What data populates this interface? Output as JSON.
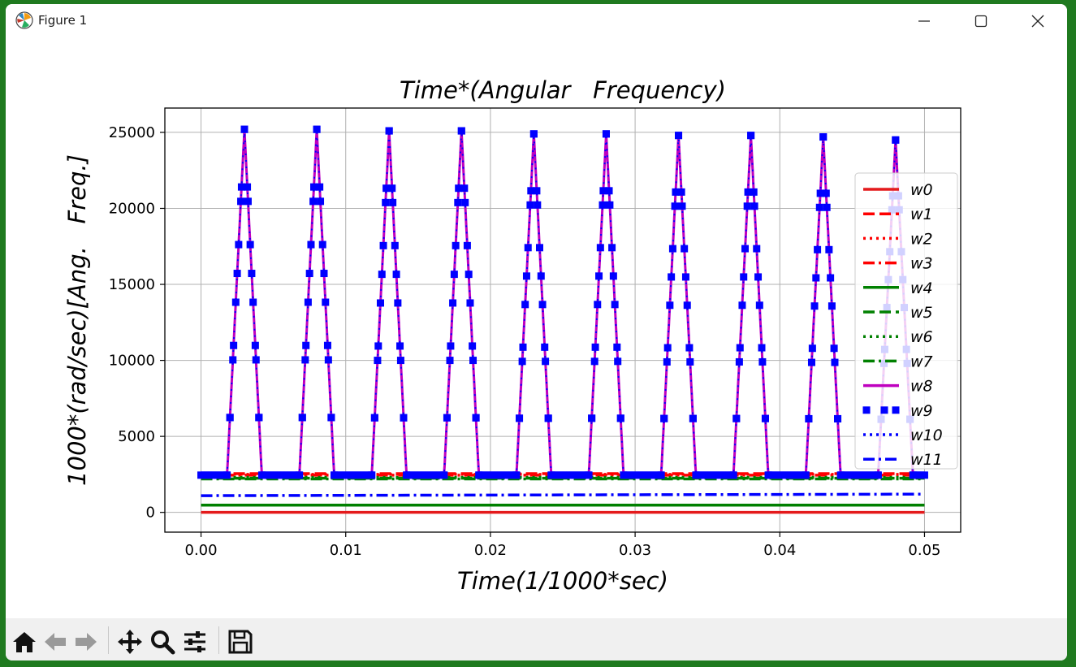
{
  "window": {
    "title": "Figure 1"
  },
  "chart_data": {
    "type": "line",
    "title": "Time*(Angular   Frequency)",
    "xlabel": "Time(1/1000*sec)",
    "ylabel": "1000*(rad/sec)[Ang.   Freq.]",
    "xlim": [
      -0.0025,
      0.0525
    ],
    "ylim": [
      -1300,
      26600
    ],
    "x_ticks": [
      "0.00",
      "0.01",
      "0.02",
      "0.03",
      "0.04",
      "0.05"
    ],
    "x_tick_values": [
      0,
      0.01,
      0.02,
      0.03,
      0.04,
      0.05
    ],
    "y_ticks": [
      "0",
      "5000",
      "10000",
      "15000",
      "20000",
      "25000"
    ],
    "y_tick_values": [
      0,
      5000,
      10000,
      15000,
      20000,
      25000
    ],
    "grid": true,
    "legend_position": "right",
    "peaks": {
      "centers": [
        0.003,
        0.008,
        0.013,
        0.018,
        0.023,
        0.028,
        0.033,
        0.038,
        0.043,
        0.048
      ],
      "heights": [
        25200,
        25200,
        25100,
        25100,
        24900,
        24900,
        24800,
        24800,
        24700,
        24500
      ],
      "half_width": 0.0012,
      "baseline": 2450
    },
    "series": [
      {
        "name": "w0",
        "color": "#e41a1c",
        "style": "solid",
        "values_start_end": [
          0,
          0
        ]
      },
      {
        "name": "w1",
        "color": "#ff0000",
        "style": "dashed",
        "values_start_end": [
          2550,
          2550
        ]
      },
      {
        "name": "w2",
        "color": "#ff0000",
        "style": "dotted",
        "values_start_end": [
          2500,
          2500
        ]
      },
      {
        "name": "w3",
        "color": "#ff0000",
        "style": "dashdot",
        "values_start_end": [
          2450,
          2450
        ]
      },
      {
        "name": "w4",
        "color": "#008000",
        "style": "solid",
        "values_start_end": [
          480,
          480
        ]
      },
      {
        "name": "w5",
        "color": "#008000",
        "style": "dashed",
        "values_start_end": [
          2250,
          2250
        ]
      },
      {
        "name": "w6",
        "color": "#008000",
        "style": "dotted",
        "values_start_end": [
          2300,
          2300
        ]
      },
      {
        "name": "w7",
        "color": "#008000",
        "style": "dashdot",
        "values_start_end": [
          2200,
          2200
        ]
      },
      {
        "name": "w8",
        "color": "#bf00bf",
        "style": "solid",
        "pulse": true
      },
      {
        "name": "w9",
        "color": "#0000ff",
        "style": "square-dotted",
        "pulse": true
      },
      {
        "name": "w10",
        "color": "#0000ff",
        "style": "dotted",
        "pulse": true
      },
      {
        "name": "w11",
        "color": "#0000ff",
        "style": "dashdot",
        "values_start_end": [
          1100,
          1200
        ]
      }
    ]
  },
  "toolbar": {
    "icons": [
      "home-icon",
      "back-arrow-icon",
      "forward-arrow-icon",
      "pan-icon",
      "zoom-icon",
      "configure-subplots-icon",
      "save-icon"
    ]
  }
}
